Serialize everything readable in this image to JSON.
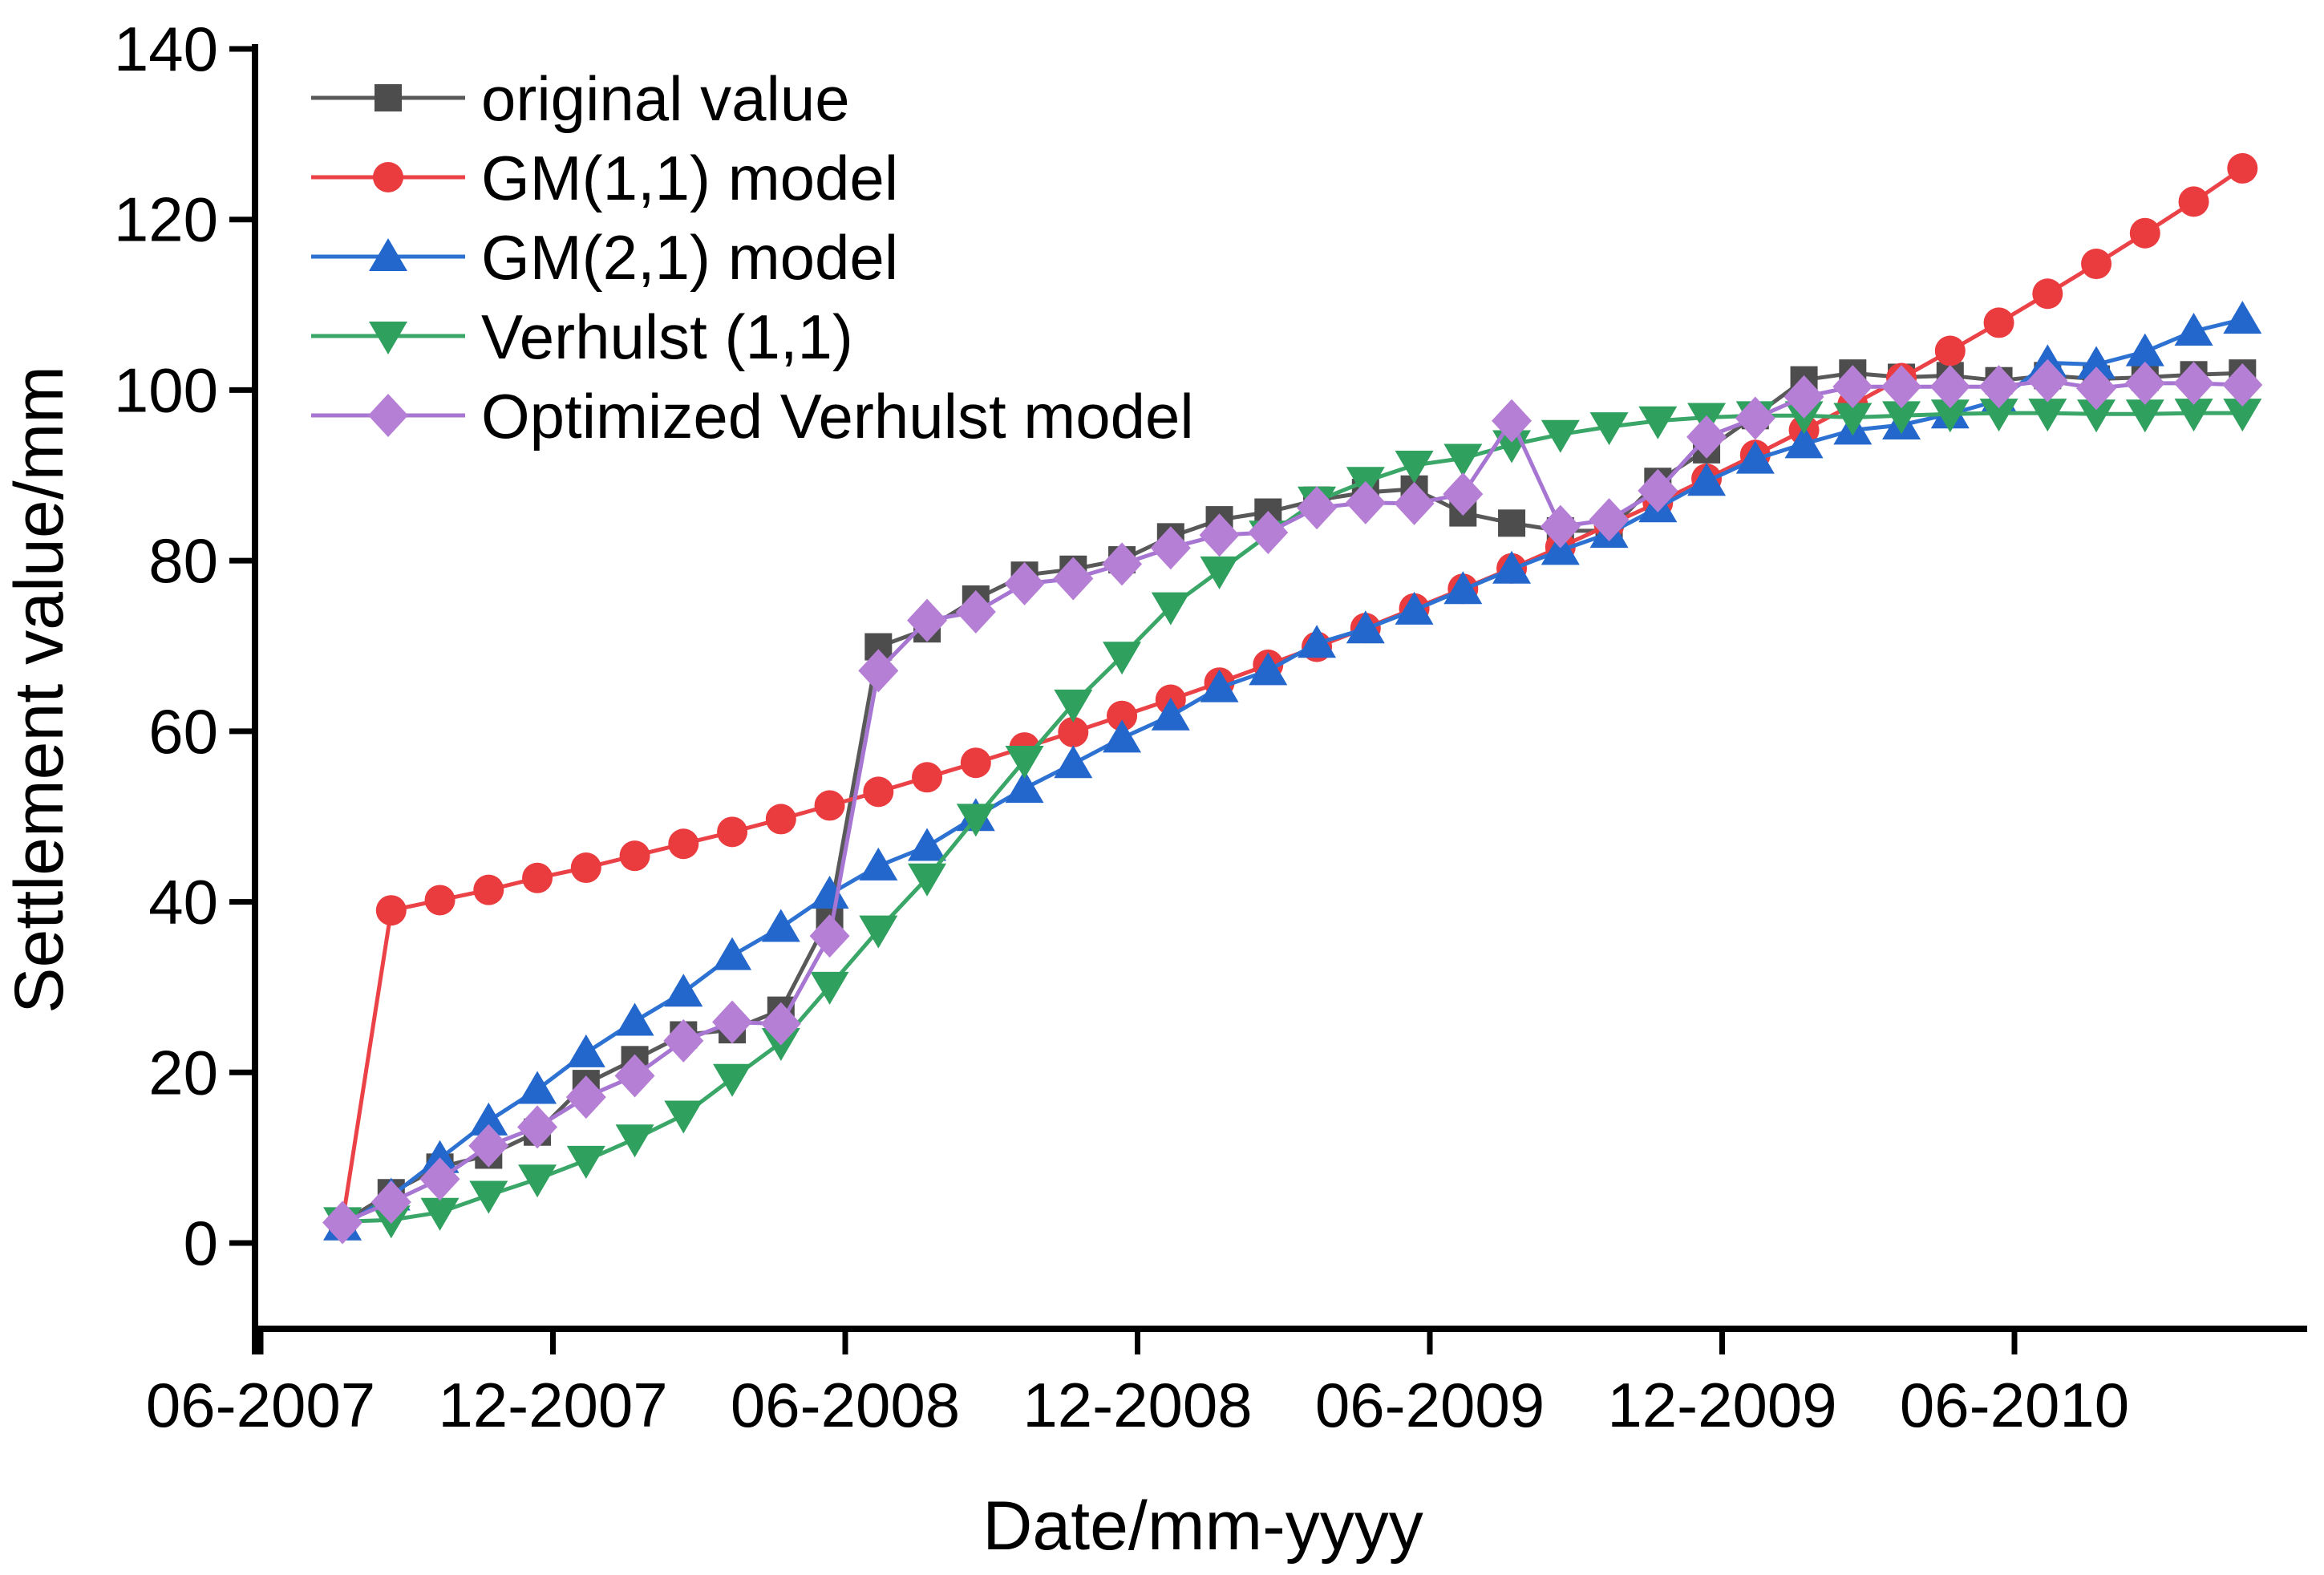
{
  "figure": {
    "background": "#ffffff",
    "axis_color": "#000000"
  },
  "chart_data": {
    "type": "line",
    "title": "",
    "xlabel": "Date/mm-yyyy",
    "ylabel": "Settlement value/mm",
    "ylim": [
      0,
      140
    ],
    "y_ticks": [
      0,
      20,
      40,
      60,
      80,
      100,
      120,
      140
    ],
    "x_tick_labels": [
      "06-2007",
      "12-2007",
      "06-2008",
      "12-2008",
      "06-2009",
      "12-2009",
      "06-2010"
    ],
    "x_tick_month_offsets": [
      0,
      6,
      12,
      18,
      24,
      30,
      36
    ],
    "grid": false,
    "legend_position": "upper-left-inside",
    "x": [
      "08-2007",
      "09-2007",
      "10-2007",
      "11-2007",
      "12-2007",
      "01-2008",
      "02-2008",
      "03-2008",
      "04-2008",
      "05-2008",
      "06-2008",
      "07-2008",
      "08-2008",
      "09-2008",
      "10-2008",
      "11-2008",
      "12-2008",
      "01-2009",
      "02-2009",
      "03-2009",
      "04-2009",
      "05-2009",
      "06-2009",
      "07-2009",
      "08-2009",
      "09-2009",
      "10-2009",
      "11-2009",
      "12-2009",
      "01-2010",
      "02-2010",
      "03-2010",
      "04-2010",
      "05-2010",
      "06-2010",
      "07-2010",
      "08-2010",
      "09-2010",
      "10-2010",
      "11-2010"
    ],
    "series": [
      {
        "name": "original value",
        "marker": "square",
        "color": "#4d4d4d",
        "line_color": "#595959",
        "values": [
          2.4,
          5.9,
          8.9,
          10.3,
          13.0,
          18.7,
          21.5,
          24.4,
          25.0,
          27.3,
          38.3,
          69.9,
          72.0,
          75.5,
          78.3,
          79.0,
          80.1,
          82.8,
          84.8,
          85.7,
          87.1,
          88.0,
          88.4,
          85.6,
          84.4,
          83.5,
          83.5,
          89.3,
          93.0,
          97.0,
          101.2,
          102.0,
          101.5,
          101.7,
          101.1,
          101.7,
          101.3,
          101.5,
          101.8,
          102.0
        ]
      },
      {
        "name": "GM(1,1) model",
        "marker": "circle",
        "color": "#ea3b3e",
        "line_color": "#ea4247",
        "values": [
          2.5,
          39.0,
          40.2,
          41.4,
          42.8,
          44.0,
          45.4,
          46.8,
          48.2,
          49.7,
          51.3,
          52.9,
          54.6,
          56.3,
          58.1,
          59.9,
          61.8,
          63.7,
          65.7,
          67.8,
          69.9,
          72.1,
          74.4,
          76.7,
          79.1,
          81.6,
          84.2,
          86.8,
          89.6,
          92.4,
          95.3,
          98.3,
          101.4,
          104.6,
          107.9,
          111.3,
          114.8,
          118.4,
          122.1,
          126.0
        ]
      },
      {
        "name": "GM(2,1) model",
        "marker": "triangle-up",
        "color": "#2367cd",
        "line_color": "#2d72d2",
        "values": [
          2.0,
          5.5,
          9.9,
          14.3,
          18.0,
          22.3,
          26.0,
          29.4,
          33.7,
          37.0,
          40.9,
          44.2,
          46.5,
          50.0,
          53.3,
          56.2,
          59.2,
          61.8,
          65.1,
          67.1,
          70.3,
          72.0,
          74.2,
          76.6,
          79.0,
          81.2,
          83.2,
          86.2,
          89.3,
          91.9,
          93.7,
          95.3,
          95.9,
          97.2,
          98.8,
          103.2,
          103.0,
          104.5,
          106.9,
          108.3
        ]
      },
      {
        "name": "Verhulst (1,1)",
        "marker": "triangle-down",
        "color": "#2fa05e",
        "line_color": "#3aa768",
        "values": [
          2.5,
          2.7,
          3.6,
          5.6,
          7.5,
          9.7,
          12.2,
          15.0,
          19.3,
          23.5,
          30.1,
          36.7,
          42.8,
          49.8,
          56.6,
          63.2,
          68.8,
          74.6,
          78.8,
          83.0,
          87.0,
          89.3,
          91.2,
          92.0,
          93.6,
          94.8,
          95.7,
          96.4,
          96.8,
          97.0,
          97.0,
          96.8,
          97.0,
          97.2,
          97.3,
          97.3,
          97.2,
          97.2,
          97.3,
          97.3
        ]
      },
      {
        "name": "Optimized Verhulst model",
        "marker": "diamond",
        "color": "#b67fd6",
        "line_color": "#a775d2",
        "values": [
          2.4,
          4.8,
          7.5,
          11.4,
          13.6,
          17.1,
          19.6,
          23.7,
          25.9,
          25.7,
          36.0,
          67.1,
          73.0,
          74.0,
          77.3,
          77.9,
          79.6,
          81.5,
          83.0,
          83.3,
          86.2,
          86.8,
          86.7,
          87.8,
          96.4,
          84.0,
          84.8,
          88.2,
          94.5,
          96.7,
          99.2,
          100.4,
          100.4,
          100.4,
          100.4,
          101.1,
          100.2,
          100.8,
          100.8,
          100.6
        ]
      }
    ]
  }
}
